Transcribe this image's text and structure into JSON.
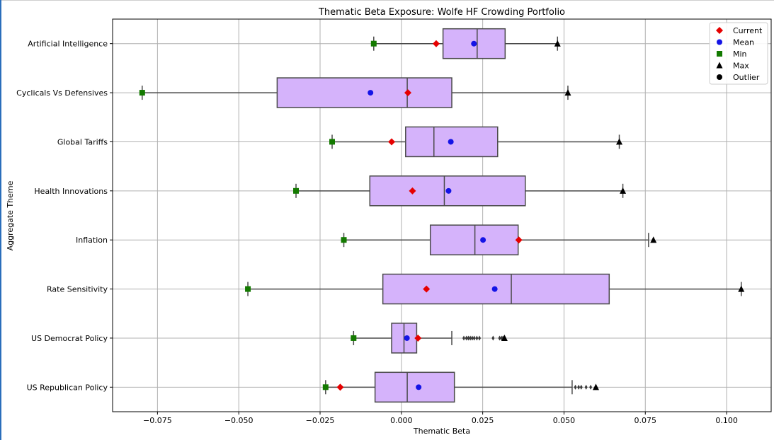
{
  "chart_data": {
    "type": "box",
    "title": "Thematic Beta Exposure: Wolfe HF Crowding Portfolio",
    "xlabel": "Thematic Beta",
    "ylabel": "Aggregate Theme",
    "xlim": [
      -0.0888,
      0.1137
    ],
    "xticks": [
      -0.075,
      -0.05,
      -0.025,
      0.0,
      0.025,
      0.05,
      0.075,
      0.1
    ],
    "xtick_labels": [
      "−0.075",
      "−0.050",
      "−0.025",
      "0.000",
      "0.025",
      "0.050",
      "0.075",
      "0.100"
    ],
    "grid": true,
    "legend_position": "top-right",
    "legend": [
      "Current",
      "Mean",
      "Min",
      "Max",
      "Outlier"
    ],
    "colors": {
      "box_fill": "#d5b3fb",
      "box_edge": "#4a4a4a",
      "current": "#e60000",
      "mean": "#1414e6",
      "min": "#137a00",
      "max": "#000000",
      "outlier": "#000000"
    },
    "categories": [
      "Artificial Intelligence",
      "Cyclicals Vs Defensives",
      "Global Tariffs",
      "Health Innovations",
      "Inflation",
      "Rate Sensitivity",
      "US Democrat Policy",
      "US Republican Policy"
    ],
    "series": [
      {
        "q1": 0.0128,
        "median": 0.0233,
        "q3": 0.0319,
        "whisker_low": -0.0085,
        "whisker_high": 0.048,
        "current": 0.0107,
        "mean": 0.0223,
        "min": -0.0085,
        "max": 0.048,
        "outliers": []
      },
      {
        "q1": -0.0382,
        "median": 0.0018,
        "q3": 0.0155,
        "whisker_low": -0.0797,
        "whisker_high": 0.0512,
        "current": 0.002,
        "mean": -0.0095,
        "min": -0.0797,
        "max": 0.0512,
        "outliers": []
      },
      {
        "q1": 0.0013,
        "median": 0.01,
        "q3": 0.0296,
        "whisker_low": -0.0213,
        "whisker_high": 0.067,
        "current": -0.003,
        "mean": 0.0152,
        "min": -0.0213,
        "max": 0.067,
        "outliers": []
      },
      {
        "q1": -0.0097,
        "median": 0.0132,
        "q3": 0.0381,
        "whisker_low": -0.0324,
        "whisker_high": 0.0681,
        "current": 0.0034,
        "mean": 0.0145,
        "min": -0.0324,
        "max": 0.0681,
        "outliers": []
      },
      {
        "q1": 0.0089,
        "median": 0.0226,
        "q3": 0.0359,
        "whisker_low": -0.0177,
        "whisker_high": 0.076,
        "current": 0.0361,
        "mean": 0.0251,
        "min": -0.0177,
        "max": 0.0775,
        "outliers": []
      },
      {
        "q1": -0.0057,
        "median": 0.0338,
        "q3": 0.0639,
        "whisker_low": -0.0472,
        "whisker_high": 0.1045,
        "current": 0.0077,
        "mean": 0.0287,
        "min": -0.0472,
        "max": 0.1045,
        "outliers": []
      },
      {
        "q1": -0.003,
        "median": 0.0008,
        "q3": 0.0047,
        "whisker_low": -0.0147,
        "whisker_high": 0.0155,
        "current": 0.0051,
        "mean": 0.0017,
        "min": -0.0147,
        "max": 0.0317,
        "outliers": [
          0.0192,
          0.02,
          0.0206,
          0.0212,
          0.0218,
          0.0224,
          0.0232,
          0.024,
          0.0282,
          0.0302,
          0.0308,
          0.0312
        ]
      },
      {
        "q1": -0.0081,
        "median": 0.0018,
        "q3": 0.0163,
        "whisker_low": -0.0233,
        "whisker_high": 0.0525,
        "current": -0.0188,
        "mean": 0.0053,
        "min": -0.0233,
        "max": 0.0598,
        "outliers": [
          0.0535,
          0.0545,
          0.0553,
          0.0568,
          0.0582
        ]
      }
    ]
  }
}
